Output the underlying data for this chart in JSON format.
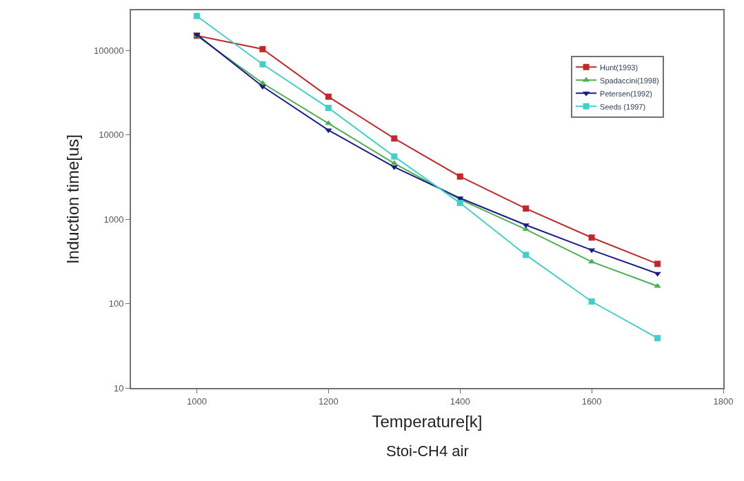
{
  "chart_data": {
    "type": "line",
    "xlabel": "Temperature[k]",
    "ylabel": "Induction time[us]",
    "annotations": [
      "Stoi-CH4 air"
    ],
    "x": [
      1000,
      1100,
      1200,
      1300,
      1400,
      1500,
      1600,
      1700
    ],
    "xlim": [
      900,
      1800
    ],
    "xticks": [
      1000,
      1200,
      1400,
      1600,
      1800
    ],
    "log": "y",
    "ylim": [
      10,
      300000
    ],
    "yticks": [
      10,
      100,
      1000,
      10000,
      100000
    ],
    "legend": "top right",
    "series": [
      {
        "name": "Hunt(1993)",
        "color": "#c0282a",
        "marker": "square",
        "values": [
          150000,
          104000,
          28400,
          9080,
          3210,
          1340,
          607,
          296
        ]
      },
      {
        "name": "Spadaccini(1998)",
        "color": "#4cb050",
        "marker": "triangle",
        "values": [
          150000,
          41000,
          13700,
          4600,
          1720,
          760,
          313,
          161
        ]
      },
      {
        "name": "Petersen(1992)",
        "color": "#1a1a8c",
        "marker": "triangle-down",
        "values": [
          155000,
          37500,
          11400,
          4170,
          1780,
          855,
          432,
          227
        ]
      },
      {
        "name": "Seeds (1997)",
        "color": "#40d0c8",
        "marker": "square",
        "values": [
          257000,
          68800,
          20900,
          5550,
          1560,
          378,
          106,
          39
        ]
      }
    ]
  }
}
